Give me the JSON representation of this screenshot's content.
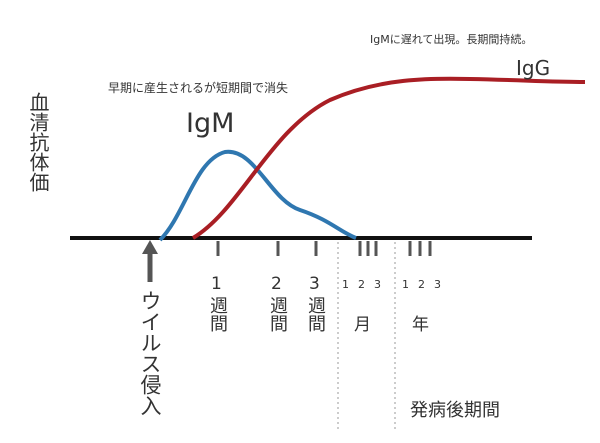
{
  "y_axis_label": "血清抗体価",
  "annotations": {
    "igm_note": "早期に産生されるが短期間で消失",
    "igm": "IgM",
    "igg_note": "IgMに遅れて出現。長期間持続。",
    "igg": "IgG"
  },
  "virus_entry": "ウイルス侵入",
  "ticks": {
    "weeks": [
      {
        "number": "1",
        "unit": "週間"
      },
      {
        "number": "2",
        "unit": "週間"
      },
      {
        "number": "3",
        "unit": "週間"
      }
    ],
    "months": {
      "numbers": [
        "1",
        "2",
        "3"
      ],
      "unit": "月"
    },
    "years": {
      "numbers": [
        "1",
        "2",
        "3"
      ],
      "unit": "年"
    }
  },
  "x_axis_label": "発病後期間"
}
